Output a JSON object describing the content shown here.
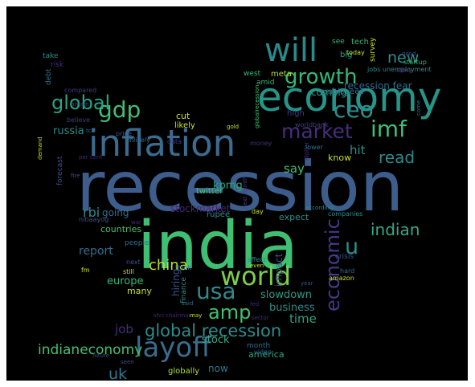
{
  "wordcloud": {
    "words": [
      {
        "text": "recession",
        "color": "#3d5e8c"
      },
      {
        "text": "india",
        "color": "#3fbf72"
      },
      {
        "text": "economy",
        "color": "#25958a"
      },
      {
        "text": "inflation",
        "color": "#3b6b8f"
      },
      {
        "text": "will",
        "color": "#2a8b8a"
      },
      {
        "text": "layoff",
        "color": "#3a6c8e"
      },
      {
        "text": "world",
        "color": "#7ccf4a"
      },
      {
        "text": "growth",
        "color": "#35b77a"
      },
      {
        "text": "imf",
        "color": "#3ec26f"
      },
      {
        "text": "market",
        "color": "#472d7b"
      },
      {
        "text": "ceo",
        "color": "#2f8f8c"
      },
      {
        "text": "gdp",
        "color": "#3fbf72"
      },
      {
        "text": "usa",
        "color": "#2d8a8e"
      },
      {
        "text": "amp",
        "color": "#40c06f"
      },
      {
        "text": "economic",
        "color": "#433a85"
      },
      {
        "text": "global recession",
        "color": "#2c8c8d"
      },
      {
        "text": "global",
        "color": "#27a484"
      },
      {
        "text": "new",
        "color": "#2a8f8b"
      },
      {
        "text": "u",
        "color": "#2a8f8b"
      },
      {
        "text": "indian",
        "color": "#38a987"
      },
      {
        "text": "read",
        "color": "#2d8a8e"
      },
      {
        "text": "china",
        "color": "#c2de23"
      },
      {
        "text": "indianeconomy",
        "color": "#45c16c"
      },
      {
        "text": "uk",
        "color": "#2f7a8e"
      },
      {
        "text": "time",
        "color": "#27a484"
      },
      {
        "text": "slowdown",
        "color": "#2b9a87"
      },
      {
        "text": "say",
        "color": "#3fbf72"
      },
      {
        "text": "hit",
        "color": "#2c8c8d"
      },
      {
        "text": "report",
        "color": "#2e6e8e"
      },
      {
        "text": "job",
        "color": "#472d7b"
      },
      {
        "text": "stock",
        "color": "#38a987"
      },
      {
        "text": "europe",
        "color": "#35b77a"
      },
      {
        "text": "business",
        "color": "#2e8a8c"
      },
      {
        "text": "rbi",
        "color": "#2d8a8e"
      },
      {
        "text": "russia",
        "color": "#2e8a8c"
      },
      {
        "text": "kpmg",
        "color": "#27a484"
      },
      {
        "text": "going",
        "color": "#2e6e8e"
      },
      {
        "text": "hiring",
        "color": "#3b528b"
      },
      {
        "text": "impact",
        "color": "#3b528b"
      },
      {
        "text": "stockmarket",
        "color": "#482576"
      },
      {
        "text": "recession fear",
        "color": "#2e6e8e"
      },
      {
        "text": "coming",
        "color": "#27a484"
      },
      {
        "text": "countries",
        "color": "#3ec26f"
      },
      {
        "text": "many",
        "color": "#c8e020"
      },
      {
        "text": "now",
        "color": "#2b7c8e"
      },
      {
        "text": "america",
        "color": "#26a784"
      },
      {
        "text": "globally",
        "color": "#b0dd2f"
      },
      {
        "text": "expect",
        "color": "#2a8f8b"
      },
      {
        "text": "know",
        "color": "#c8e020"
      },
      {
        "text": "cut",
        "color": "#c8e020"
      },
      {
        "text": "likely",
        "color": "#c8e020"
      },
      {
        "text": "twitter",
        "color": "#44bf70"
      },
      {
        "text": "rupee",
        "color": "#2d8a8e"
      },
      {
        "text": "employees",
        "color": "#2e6e8e"
      },
      {
        "text": "meta",
        "color": "#b5de2b"
      },
      {
        "text": "west",
        "color": "#35b77a"
      },
      {
        "text": "amid",
        "color": "#35b77a"
      },
      {
        "text": "high",
        "color": "#433a85"
      },
      {
        "text": "people",
        "color": "#2e6e8e"
      },
      {
        "text": "month",
        "color": "#2e6e8e"
      },
      {
        "text": "finance",
        "color": "#2e8a8c"
      },
      {
        "text": "debt",
        "color": "#2e6e8e"
      },
      {
        "text": "take",
        "color": "#2a8f8b"
      },
      {
        "text": "risk",
        "color": "#472d7b"
      },
      {
        "text": "tech",
        "color": "#35b77a"
      },
      {
        "text": "big",
        "color": "#26a784"
      },
      {
        "text": "see",
        "color": "#35b77a"
      },
      {
        "text": "survey",
        "color": "#c8e020"
      },
      {
        "text": "startup",
        "color": "#35b77a"
      },
      {
        "text": "jobs unemployment",
        "color": "#2e8a8c"
      },
      {
        "text": "today",
        "color": "#c8e020"
      },
      {
        "text": "good",
        "color": "#3b528b"
      },
      {
        "text": "story",
        "color": "#472d7b"
      },
      {
        "text": "compared",
        "color": "#433a85"
      },
      {
        "text": "britain",
        "color": "#3b528b"
      },
      {
        "text": "believe",
        "color": "#433a85"
      },
      {
        "text": "price",
        "color": "#3b528b"
      },
      {
        "text": "worldbank",
        "color": "#433a85"
      },
      {
        "text": "unlikely",
        "color": "#2e6e8e"
      },
      {
        "text": "data",
        "color": "#433a85"
      },
      {
        "text": "money",
        "color": "#472d7b"
      },
      {
        "text": "dollar",
        "color": "#472d7b"
      },
      {
        "text": "lower",
        "color": "#2e6e8e"
      },
      {
        "text": "nifty",
        "color": "#3b528b"
      },
      {
        "text": "nitiaayog",
        "color": "#3b528b"
      },
      {
        "text": "war",
        "color": "#482576"
      },
      {
        "text": "day",
        "color": "#c8e020"
      },
      {
        "text": "according",
        "color": "#2e8a8c"
      },
      {
        "text": "companies",
        "color": "#2e8a8c"
      },
      {
        "text": "next month",
        "color": "#433a85"
      },
      {
        "text": "affect",
        "color": "#2e8a8c"
      },
      {
        "text": "even",
        "color": "#c8e020"
      },
      {
        "text": "crisis",
        "color": "#3b528b"
      },
      {
        "text": "hard",
        "color": "#2e6e8e"
      },
      {
        "text": "amazon",
        "color": "#c8e020"
      },
      {
        "text": "year",
        "color": "#3b528b"
      },
      {
        "text": "said",
        "color": "#2e6e8e"
      },
      {
        "text": "sector",
        "color": "#472d7b"
      },
      {
        "text": "think",
        "color": "#2e6e8e"
      },
      {
        "text": "video",
        "color": "#2e6e8e"
      },
      {
        "text": "future",
        "color": "#3b528b"
      },
      {
        "text": "seen",
        "color": "#3b528b"
      },
      {
        "text": "may",
        "color": "#c8e020"
      },
      {
        "text": "shri chairman",
        "color": "#482576"
      },
      {
        "text": "fed",
        "color": "#482576"
      },
      {
        "text": "fm",
        "color": "#c8e020"
      },
      {
        "text": "next",
        "color": "#3b528b"
      },
      {
        "text": "still",
        "color": "#c8e020"
      },
      {
        "text": "gold",
        "color": "#c8e020"
      },
      {
        "text": "globalrecession",
        "color": "#3ec26f"
      },
      {
        "text": "tcs",
        "color": "#2e6e8e"
      },
      {
        "text": "forecast",
        "color": "#3b528b"
      },
      {
        "text": "demand",
        "color": "#c8e020"
      },
      {
        "text": "fire",
        "color": "#3b528b"
      },
      {
        "text": "come",
        "color": "#2e6e8e"
      },
      {
        "text": "per cent",
        "color": "#482576"
      }
    ]
  }
}
